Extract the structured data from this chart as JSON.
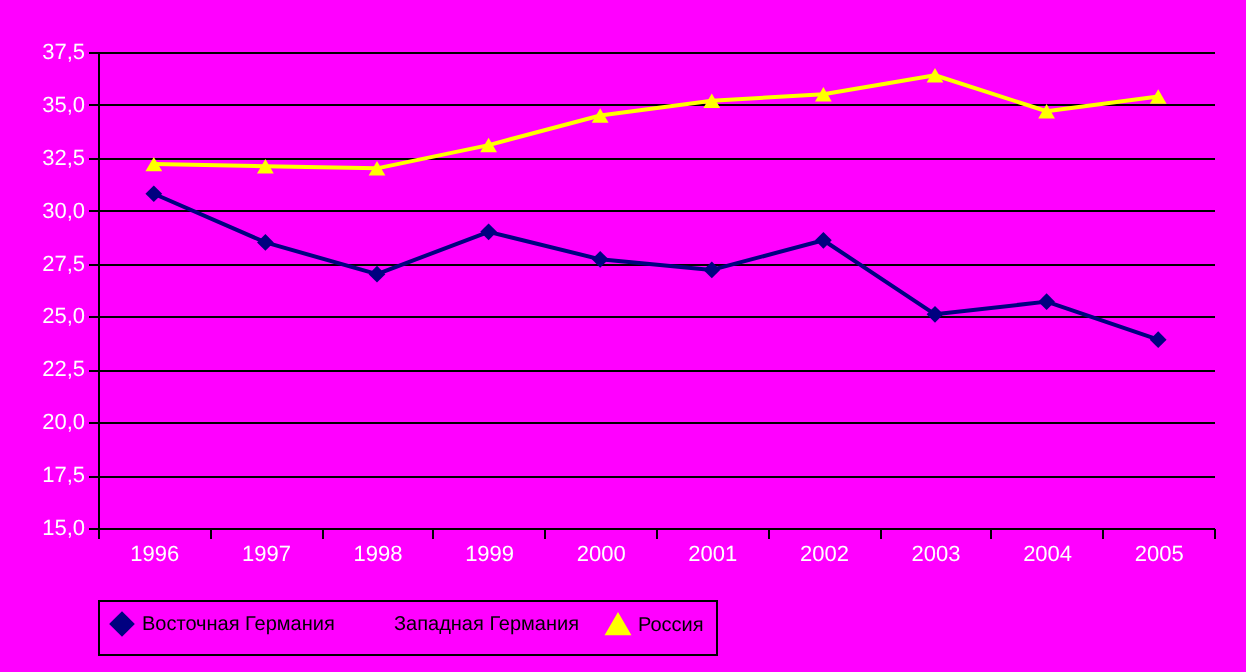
{
  "chart_data": {
    "type": "line",
    "categories": [
      "1996",
      "1997",
      "1998",
      "1999",
      "2000",
      "2001",
      "2002",
      "2003",
      "2004",
      "2005"
    ],
    "series": [
      {
        "name": "Восточная Германия",
        "color": "#000080",
        "marker": "diamond",
        "values": [
          30.8,
          28.5,
          27.0,
          29.0,
          27.7,
          27.2,
          28.6,
          25.1,
          25.7,
          23.9
        ]
      },
      {
        "name": "Западная Германия",
        "marker": "none",
        "values": [
          null,
          null,
          null,
          null,
          null,
          null,
          null,
          null,
          null,
          null
        ]
      },
      {
        "name": "Россия",
        "color": "#ffff00",
        "marker": "triangle",
        "values": [
          32.2,
          32.1,
          32.0,
          33.1,
          34.5,
          35.2,
          35.5,
          36.4,
          34.7,
          35.4
        ]
      }
    ],
    "ylim": [
      15,
      37.5
    ],
    "yticks": [
      {
        "value": 15,
        "label": "15,0"
      },
      {
        "value": 17.5,
        "label": "17,5"
      },
      {
        "value": 20,
        "label": "20,0"
      },
      {
        "value": 22.5,
        "label": "22,5"
      },
      {
        "value": 25,
        "label": "25,0"
      },
      {
        "value": 27.5,
        "label": "27,5"
      },
      {
        "value": 30,
        "label": "30,0"
      },
      {
        "value": 32.5,
        "label": "32,5"
      },
      {
        "value": 35,
        "label": "35,0"
      },
      {
        "value": 37.5,
        "label": "37,5"
      }
    ],
    "grid": "y",
    "legend": "bottom"
  }
}
